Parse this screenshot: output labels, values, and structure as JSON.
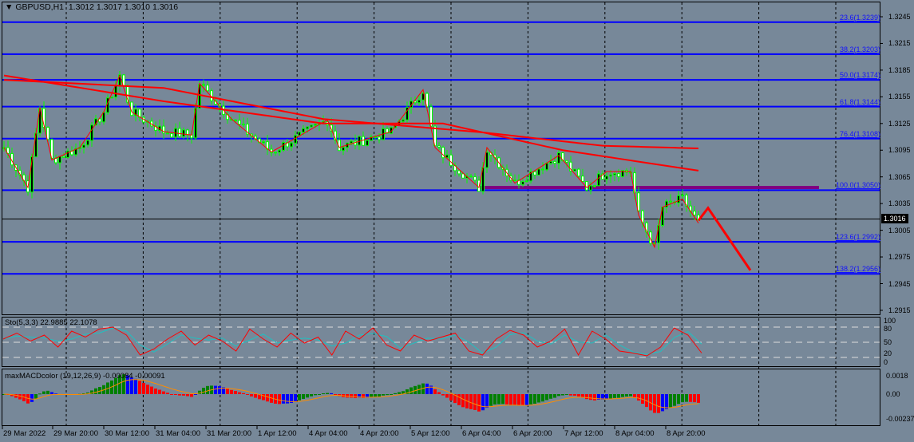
{
  "header": {
    "symbol": "GBPUSD,H1",
    "ohlc": "1.3012 1.3017 1.3010 1.3016"
  },
  "current_price": "1.3016",
  "price_axis": [
    "1.3245",
    "1.3215",
    "1.3185",
    "1.3155",
    "1.3125",
    "1.3095",
    "1.3065",
    "1.3035",
    "1.3005",
    "1.2975",
    "1.2945",
    "1.2915"
  ],
  "fib_levels": [
    {
      "label": "23.6(1.3239)",
      "price": 1.3239
    },
    {
      "label": "38.2(1.3203)",
      "price": 1.3203
    },
    {
      "label": "50.0(1.3174)",
      "price": 1.3174
    },
    {
      "label": "61.8(1.3144)",
      "price": 1.3144
    },
    {
      "label": "76.4(1.3108)",
      "price": 1.3108
    },
    {
      "label": "100.0(1.3050)",
      "price": 1.305
    },
    {
      "label": "123.6(1.2992)",
      "price": 1.2992
    },
    {
      "label": "138.2(1.2956)",
      "price": 1.2956
    }
  ],
  "stoch": {
    "label": "Sto(5,3,3) 22.9885 22.1078",
    "axis": [
      "100",
      "80",
      "50",
      "20",
      "0"
    ],
    "values": [
      60,
      75,
      55,
      70,
      40,
      80,
      65,
      85,
      90,
      70,
      20,
      35,
      60,
      80,
      45,
      70,
      55,
      30,
      85,
      60,
      40,
      75,
      50,
      65,
      20,
      80,
      60,
      88,
      45,
      30,
      70,
      55,
      65,
      75,
      30,
      20,
      60,
      82,
      70,
      40,
      55,
      85,
      20,
      80,
      60,
      30,
      25,
      18,
      40,
      88,
      70,
      25
    ]
  },
  "macd": {
    "label": "maxMACDcolor (19,12,26,9) -0.00084 -0.00091",
    "axis": [
      "0.0018",
      "0.00",
      "-0.00237"
    ]
  },
  "time_axis": [
    "29 Mar 2022",
    "29 Mar 20:00",
    "30 Mar 12:00",
    "31 Mar 04:00",
    "31 Mar 20:00",
    "1 Apr 12:00",
    "4 Apr 04:00",
    "4 Apr 20:00",
    "5 Apr 12:00",
    "6 Apr 04:00",
    "6 Apr 20:00",
    "7 Apr 12:00",
    "8 Apr 04:00",
    "8 Apr 20:00"
  ],
  "chart_data": {
    "type": "candlestick",
    "symbol": "GBPUSD",
    "timeframe": "H1",
    "ylim": [
      1.29,
      1.326
    ],
    "price_keypoints": [
      [
        0,
        1.3098
      ],
      [
        6,
        1.3053
      ],
      [
        9,
        1.3143
      ],
      [
        12,
        1.3084
      ],
      [
        19,
        1.3098
      ],
      [
        25,
        1.3138
      ],
      [
        29,
        1.3179
      ],
      [
        32,
        1.3138
      ],
      [
        40,
        1.3116
      ],
      [
        47,
        1.3112
      ],
      [
        49,
        1.317
      ],
      [
        57,
        1.313
      ],
      [
        67,
        1.3093
      ],
      [
        81,
        1.3129
      ],
      [
        84,
        1.3098
      ],
      [
        97,
        1.3116
      ],
      [
        105,
        1.3163
      ],
      [
        108,
        1.3098
      ],
      [
        119,
        1.3053
      ],
      [
        121,
        1.3098
      ],
      [
        128,
        1.3058
      ],
      [
        139,
        1.3089
      ],
      [
        146,
        1.3053
      ],
      [
        151,
        1.3071
      ],
      [
        157,
        1.3071
      ],
      [
        159,
        1.3022
      ],
      [
        163,
        1.2986
      ],
      [
        165,
        1.3031
      ],
      [
        170,
        1.304
      ],
      [
        174,
        1.3013
      ]
    ],
    "ma_slow": [
      [
        0,
        1.3174
      ],
      [
        40,
        1.3165
      ],
      [
        80,
        1.313
      ],
      [
        120,
        1.3115
      ],
      [
        150,
        1.31
      ],
      [
        174,
        1.3097
      ]
    ],
    "ma_fast": [
      [
        0,
        1.3179
      ],
      [
        40,
        1.315
      ],
      [
        80,
        1.3125
      ],
      [
        110,
        1.3125
      ],
      [
        140,
        1.3095
      ],
      [
        174,
        1.3072
      ]
    ],
    "projection": [
      1.3016,
      1.303,
      1.296
    ]
  }
}
